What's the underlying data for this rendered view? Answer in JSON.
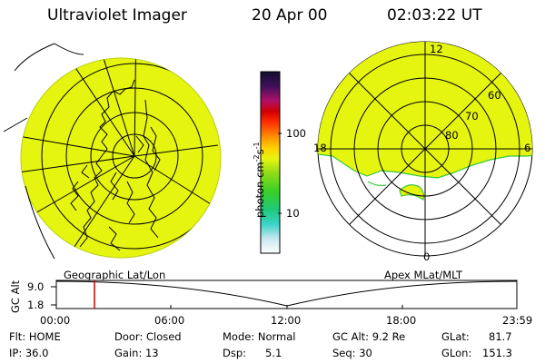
{
  "header": {
    "instrument": "Ultraviolet Imager",
    "date": "20 Apr 00",
    "time": "02:03:22 UT"
  },
  "colorbar": {
    "unit_label": "photon cm",
    "unit_sup1": "-2",
    "unit_mid": "s",
    "unit_sup2": "-1",
    "ticks": [
      "100",
      "10"
    ]
  },
  "polar_plot": {
    "lat_labels": [
      "60",
      "70",
      "80"
    ],
    "mlt_labels": [
      "12",
      "18",
      "6",
      "0"
    ]
  },
  "timeline": {
    "axis_label": "GC Alt",
    "y_ticks": [
      "9.0",
      "1.8"
    ],
    "left_title": "Geographic Lat/Lon",
    "right_title": "Apex MLat/MLT",
    "x_ticks": [
      "00:00",
      "06:00",
      "12:00",
      "18:00",
      "23:59"
    ],
    "cursor_time": "02:03"
  },
  "status": {
    "row1": [
      "Flt: HOME",
      "Door: Closed",
      "Mode: Normal",
      "GC Alt: 9.2 Re",
      "GLat:",
      "81.7"
    ],
    "row2": [
      "IP: 36.0",
      "Gain: 13",
      "Dsp:",
      "5.1",
      "Seq: 30",
      "GLon:",
      "151.3"
    ]
  },
  "colors": {
    "auroral_fill": "#e6f510",
    "cursor": "#cc0000",
    "grid": "#000000"
  }
}
